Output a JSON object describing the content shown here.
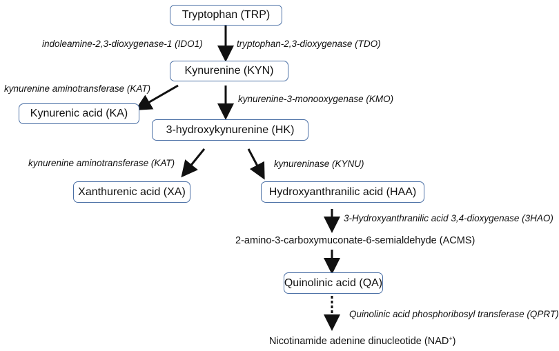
{
  "nodes": {
    "trp": "Tryptophan (TRP)",
    "kyn": "Kynurenine (KYN)",
    "ka": "Kynurenic acid (KA)",
    "hk": "3-hydroxykynurenine (HK)",
    "xa": "Xanthurenic acid (XA)",
    "haa": "Hydroxyanthranilic acid (HAA)",
    "acms": "2-amino-3-carboxymuconate-6-semialdehyde (ACMS)",
    "qa": "Quinolinic acid (QA)",
    "nad": "Nicotinamide adenine dinucleotide (NAD",
    "nad_sup": "+",
    "nad_close": ")"
  },
  "enzymes": {
    "ido1": "indoleamine-2,3-dioxygenase-1 (IDO1)",
    "tdo": "tryptophan-2,3-dioxygenase (TDO)",
    "kat1": "kynurenine aminotransferase (KAT)",
    "kmo": "kynurenine-3-monooxygenase (KMO)",
    "kat2": "kynurenine aminotransferase (KAT)",
    "kynu": "kynureninase (KYNU)",
    "haao": "3-Hydroxyanthranilic acid 3,4-dioxygenase (3HAO)",
    "qprt": "Quinolinic acid phosphoribosyl transferase (QPRT)"
  }
}
